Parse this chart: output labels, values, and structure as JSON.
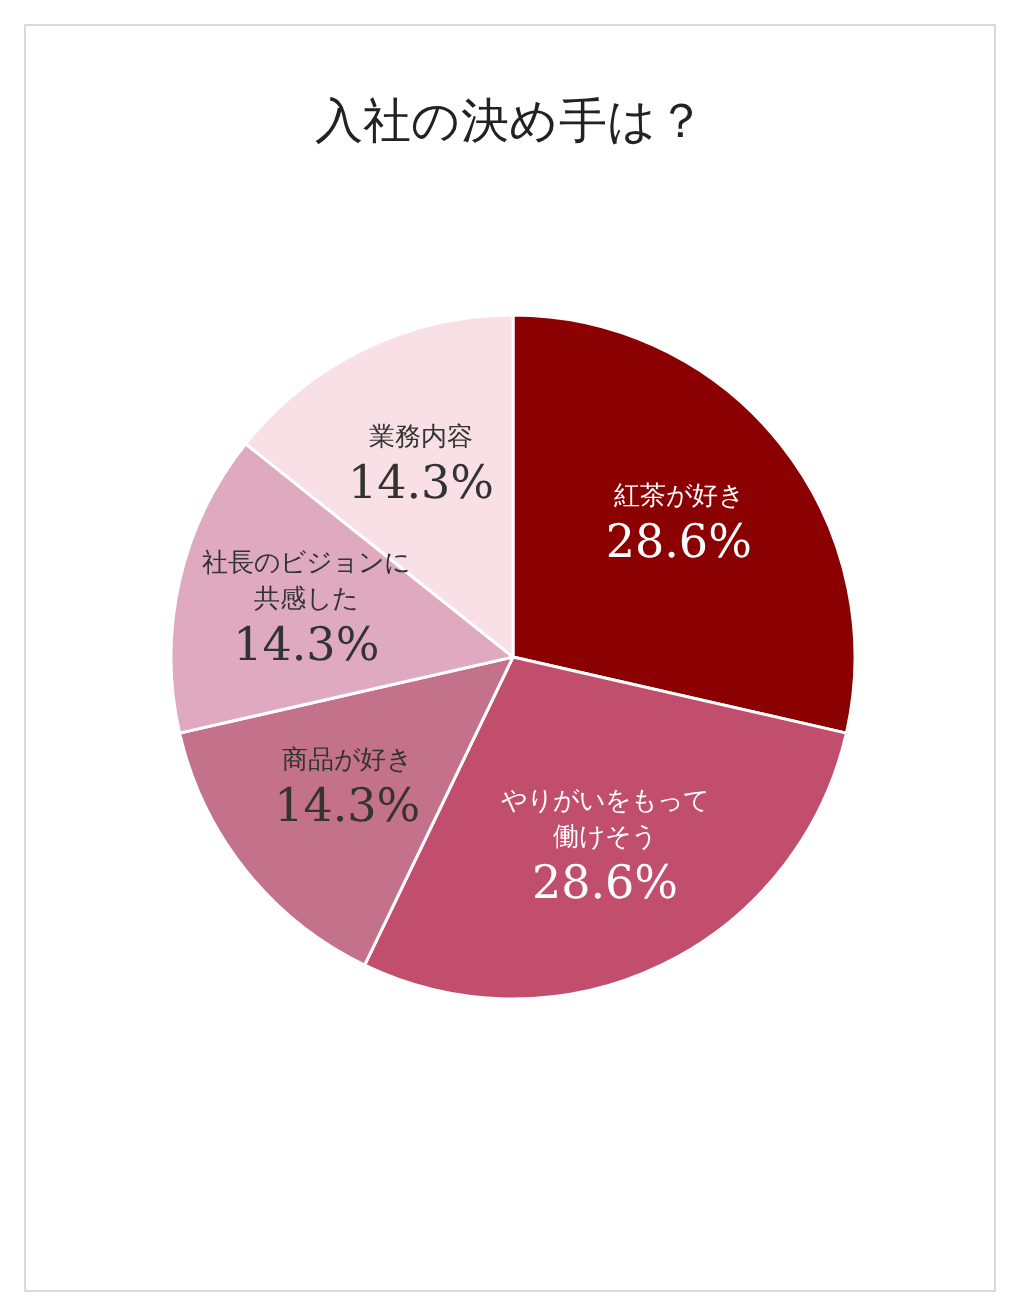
{
  "chart_data": {
    "type": "pie",
    "title": "入社の決め手は？",
    "categories": [
      "紅茶が好き",
      "やりがいをもって働けそう",
      "商品が好き",
      "社長のビジョンに共感した",
      "業務内容"
    ],
    "values": [
      28.6,
      28.6,
      14.3,
      14.3,
      14.3
    ],
    "colors": [
      "#8b0000",
      "#c04e6c",
      "#c4718b",
      "#dfa9c0",
      "#f9e0e6"
    ],
    "value_labels": [
      "28.6%",
      "28.6%",
      "14.3%",
      "14.3%",
      "14.3%"
    ]
  }
}
